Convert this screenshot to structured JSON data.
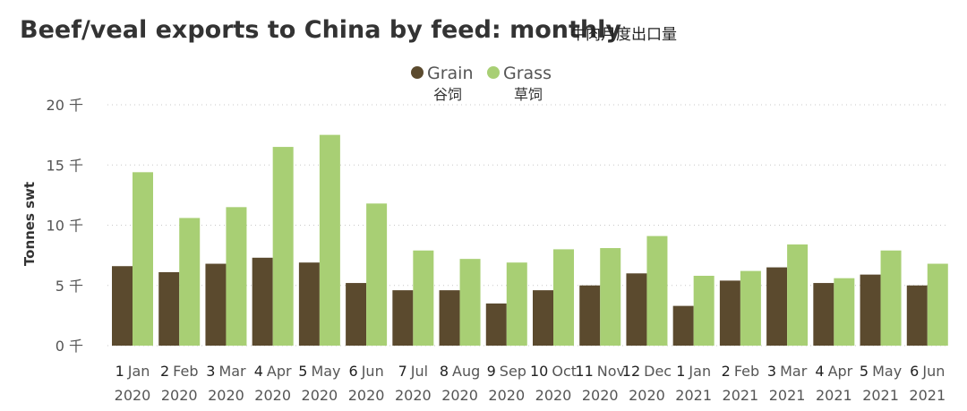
{
  "chart_data": {
    "type": "bar",
    "title": "Beef/veal exports to China by feed: monthly",
    "subtitle": "牛肉月度出口量",
    "ylabel": "Tonnes swt",
    "ylim": [
      0,
      20
    ],
    "yticks": [
      "0 千",
      "5 千",
      "10 千",
      "15 千",
      "20 千"
    ],
    "grid": true,
    "legend_position": "top-center",
    "categories": [
      {
        "num": "1",
        "month": "Jan",
        "year": "2020"
      },
      {
        "num": "2",
        "month": "Feb",
        "year": "2020"
      },
      {
        "num": "3",
        "month": "Mar",
        "year": "2020"
      },
      {
        "num": "4",
        "month": "Apr",
        "year": "2020"
      },
      {
        "num": "5",
        "month": "May",
        "year": "2020"
      },
      {
        "num": "6",
        "month": "Jun",
        "year": "2020"
      },
      {
        "num": "7",
        "month": "Jul",
        "year": "2020"
      },
      {
        "num": "8",
        "month": "Aug",
        "year": "2020"
      },
      {
        "num": "9",
        "month": "Sep",
        "year": "2020"
      },
      {
        "num": "10",
        "month": "Oct",
        "year": "2020"
      },
      {
        "num": "11",
        "month": "Nov",
        "year": "2020"
      },
      {
        "num": "12",
        "month": "Dec",
        "year": "2020"
      },
      {
        "num": "1",
        "month": "Jan",
        "year": "2021"
      },
      {
        "num": "2",
        "month": "Feb",
        "year": "2021"
      },
      {
        "num": "3",
        "month": "Mar",
        "year": "2021"
      },
      {
        "num": "4",
        "month": "Apr",
        "year": "2021"
      },
      {
        "num": "5",
        "month": "May",
        "year": "2021"
      },
      {
        "num": "6",
        "month": "Jun",
        "year": "2021"
      }
    ],
    "series": [
      {
        "name": "Grain",
        "name_zh": "谷饲",
        "color": "#5b4a2e",
        "values": [
          6.6,
          6.1,
          6.8,
          7.3,
          6.9,
          5.2,
          4.6,
          4.6,
          3.5,
          4.6,
          5.0,
          6.0,
          3.3,
          5.4,
          6.5,
          5.2,
          5.9,
          5.0
        ]
      },
      {
        "name": "Grass",
        "name_zh": "草饲",
        "color": "#a8cf74",
        "values": [
          14.4,
          10.6,
          11.5,
          16.5,
          17.5,
          11.8,
          7.9,
          7.2,
          6.9,
          8.0,
          8.1,
          9.1,
          5.8,
          6.2,
          8.4,
          5.6,
          7.9,
          6.8
        ]
      }
    ]
  }
}
